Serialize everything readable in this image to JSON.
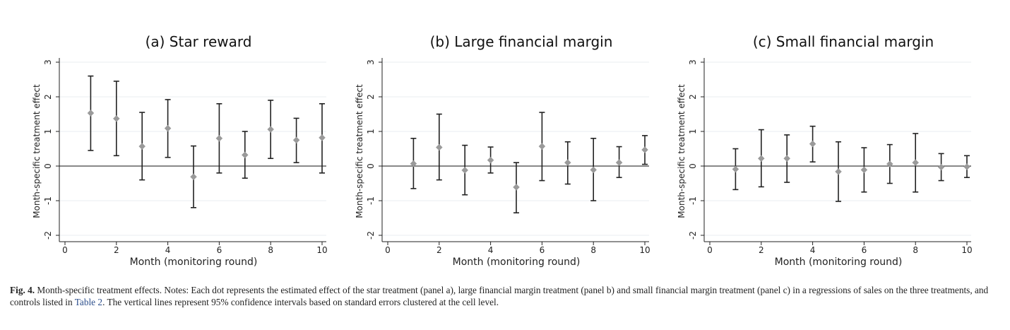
{
  "chart_data": [
    {
      "type": "scatter",
      "title": "(a) Star reward",
      "xlabel": "Month (monitoring round)",
      "ylabel": "Month-specific treatment effect",
      "xlim": [
        0,
        10
      ],
      "ylim": [
        -2,
        3
      ],
      "xticks": [
        "0",
        "2",
        "4",
        "6",
        "8",
        "10"
      ],
      "yticks": [
        "-2",
        "-1",
        "0",
        "1",
        "2",
        "3"
      ],
      "grid": true,
      "series": [
        {
          "x": [
            1,
            2,
            3,
            4,
            5,
            6,
            7,
            8,
            9,
            10
          ],
          "y": [
            1.53,
            1.37,
            0.57,
            1.09,
            -0.31,
            0.8,
            0.32,
            1.06,
            0.75,
            0.82
          ],
          "ci_low": [
            0.45,
            0.3,
            -0.4,
            0.25,
            -1.2,
            -0.2,
            -0.35,
            0.22,
            0.1,
            -0.2
          ],
          "ci_high": [
            2.6,
            2.45,
            1.55,
            1.92,
            0.58,
            1.8,
            1.0,
            1.9,
            1.38,
            1.8
          ]
        }
      ]
    },
    {
      "type": "scatter",
      "title": "(b) Large financial margin",
      "xlabel": "Month (monitoring round)",
      "ylabel": "Month-specific treatment effect",
      "xlim": [
        0,
        10
      ],
      "ylim": [
        -2,
        3
      ],
      "xticks": [
        "0",
        "2",
        "4",
        "6",
        "8",
        "10"
      ],
      "yticks": [
        "-2",
        "-1",
        "0",
        "1",
        "2",
        "3"
      ],
      "grid": true,
      "series": [
        {
          "x": [
            1,
            2,
            3,
            4,
            5,
            6,
            7,
            8,
            9,
            10
          ],
          "y": [
            0.07,
            0.54,
            -0.12,
            0.17,
            -0.61,
            0.57,
            0.1,
            -0.11,
            0.1,
            0.47
          ],
          "ci_low": [
            -0.65,
            -0.4,
            -0.83,
            -0.2,
            -1.35,
            -0.42,
            -0.52,
            -1.0,
            -0.33,
            0.05
          ],
          "ci_high": [
            0.8,
            1.5,
            0.6,
            0.55,
            0.1,
            1.55,
            0.7,
            0.8,
            0.56,
            0.88
          ]
        }
      ]
    },
    {
      "type": "scatter",
      "title": "(c) Small financial margin",
      "xlabel": "Month (monitoring round)",
      "ylabel": "Month-specific treatment effect",
      "xlim": [
        0,
        10
      ],
      "ylim": [
        -2,
        3
      ],
      "xticks": [
        "0",
        "2",
        "4",
        "6",
        "8",
        "10"
      ],
      "yticks": [
        "-2",
        "-1",
        "0",
        "1",
        "2",
        "3"
      ],
      "grid": true,
      "series": [
        {
          "x": [
            1,
            2,
            3,
            4,
            5,
            6,
            7,
            8,
            9,
            10
          ],
          "y": [
            -0.09,
            0.22,
            0.22,
            0.64,
            -0.16,
            -0.11,
            0.06,
            0.1,
            -0.03,
            -0.02
          ],
          "ci_low": [
            -0.68,
            -0.6,
            -0.47,
            0.12,
            -1.02,
            -0.75,
            -0.5,
            -0.75,
            -0.42,
            -0.33
          ],
          "ci_high": [
            0.5,
            1.05,
            0.9,
            1.15,
            0.7,
            0.53,
            0.62,
            0.94,
            0.36,
            0.3
          ]
        }
      ]
    }
  ],
  "caption": {
    "label": "Fig. 4.",
    "text_before": "Month-specific treatment effects. Notes: Each dot represents the estimated effect of the star treatment (panel a), large financial margin treatment (panel b) and small financial margin treatment (panel c) in a regressions of sales on the three treatments, and controls listed in ",
    "link": "Table 2",
    "text_after": ". The vertical lines represent 95% confidence intervals based on standard errors clustered at the cell level."
  }
}
